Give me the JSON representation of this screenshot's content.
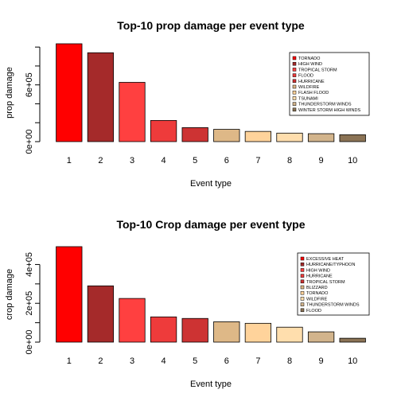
{
  "chart_data": [
    {
      "type": "bar",
      "title": "Top-10 prop damage per event type",
      "xlabel": "Event type",
      "ylabel": "prop damage",
      "categories": [
        "1",
        "2",
        "3",
        "4",
        "5",
        "6",
        "7",
        "8",
        "9",
        "10"
      ],
      "values": [
        1035000,
        940000,
        627000,
        224000,
        148000,
        130000,
        108000,
        90000,
        84000,
        73000
      ],
      "colors": [
        "#ff0000",
        "#a52a2a",
        "#ff4040",
        "#ee3b3b",
        "#cd3333",
        "#deb887",
        "#ffd39b",
        "#ffdead",
        "#d2b48c",
        "#8b7355"
      ],
      "ylim": [
        0,
        1035000
      ],
      "yticks": [
        0,
        600000,
        1000000
      ],
      "ytick_labels": [
        "0e+00",
        "6e+05",
        ""
      ],
      "ytick_marks": [
        0,
        200000,
        400000,
        600000,
        800000,
        1000000
      ],
      "legend": {
        "position": "top-right",
        "entries": [
          "TORNADO",
          "HIGH WIND",
          "TROPICAL STORM",
          "FLOOD",
          "HURRICANE",
          "WILDFIRE",
          "FLASH FLOOD",
          "TSUNAMI",
          "THUNDERSTORM WINDS",
          "WINTER STORM HIGH WINDS"
        ],
        "colors": [
          "#ff0000",
          "#a52a2a",
          "#ff4040",
          "#ee3b3b",
          "#cd3333",
          "#deb887",
          "#ffd39b",
          "#ffdead",
          "#d2b48c",
          "#8b7355"
        ]
      },
      "grid": false
    },
    {
      "type": "bar",
      "title": "Top-10 Crop damage per event type",
      "xlabel": "Event type",
      "ylabel": "crop damage",
      "categories": [
        "1",
        "2",
        "3",
        "4",
        "5",
        "6",
        "7",
        "8",
        "9",
        "10"
      ],
      "values": [
        492000,
        290000,
        225000,
        130000,
        122000,
        105000,
        97000,
        77000,
        53000,
        20000
      ],
      "colors": [
        "#ff0000",
        "#a52a2a",
        "#ff4040",
        "#ee3b3b",
        "#cd3333",
        "#deb887",
        "#ffd39b",
        "#ffdead",
        "#d2b48c",
        "#8b7355"
      ],
      "ylim": [
        0,
        492000
      ],
      "yticks": [
        0,
        200000,
        400000
      ],
      "ytick_labels": [
        "0e+00",
        "2e+05",
        "4e+05"
      ],
      "ytick_marks": [
        0,
        100000,
        200000,
        300000,
        400000
      ],
      "legend": {
        "position": "top-right",
        "entries": [
          "EXCESSIVE HEAT",
          "HURRICANE/TYPHOON",
          "HIGH WIND",
          "HURRICANE",
          "TROPICAL STORM",
          "BLIZZARD",
          "TORNADO",
          "WILDFIRE",
          "THUNDERSTORM WINDS",
          "FLOOD"
        ],
        "colors": [
          "#ff0000",
          "#a52a2a",
          "#ff4040",
          "#ee3b3b",
          "#cd3333",
          "#deb887",
          "#ffd39b",
          "#ffdead",
          "#d2b48c",
          "#8b7355"
        ]
      },
      "grid": false
    }
  ]
}
